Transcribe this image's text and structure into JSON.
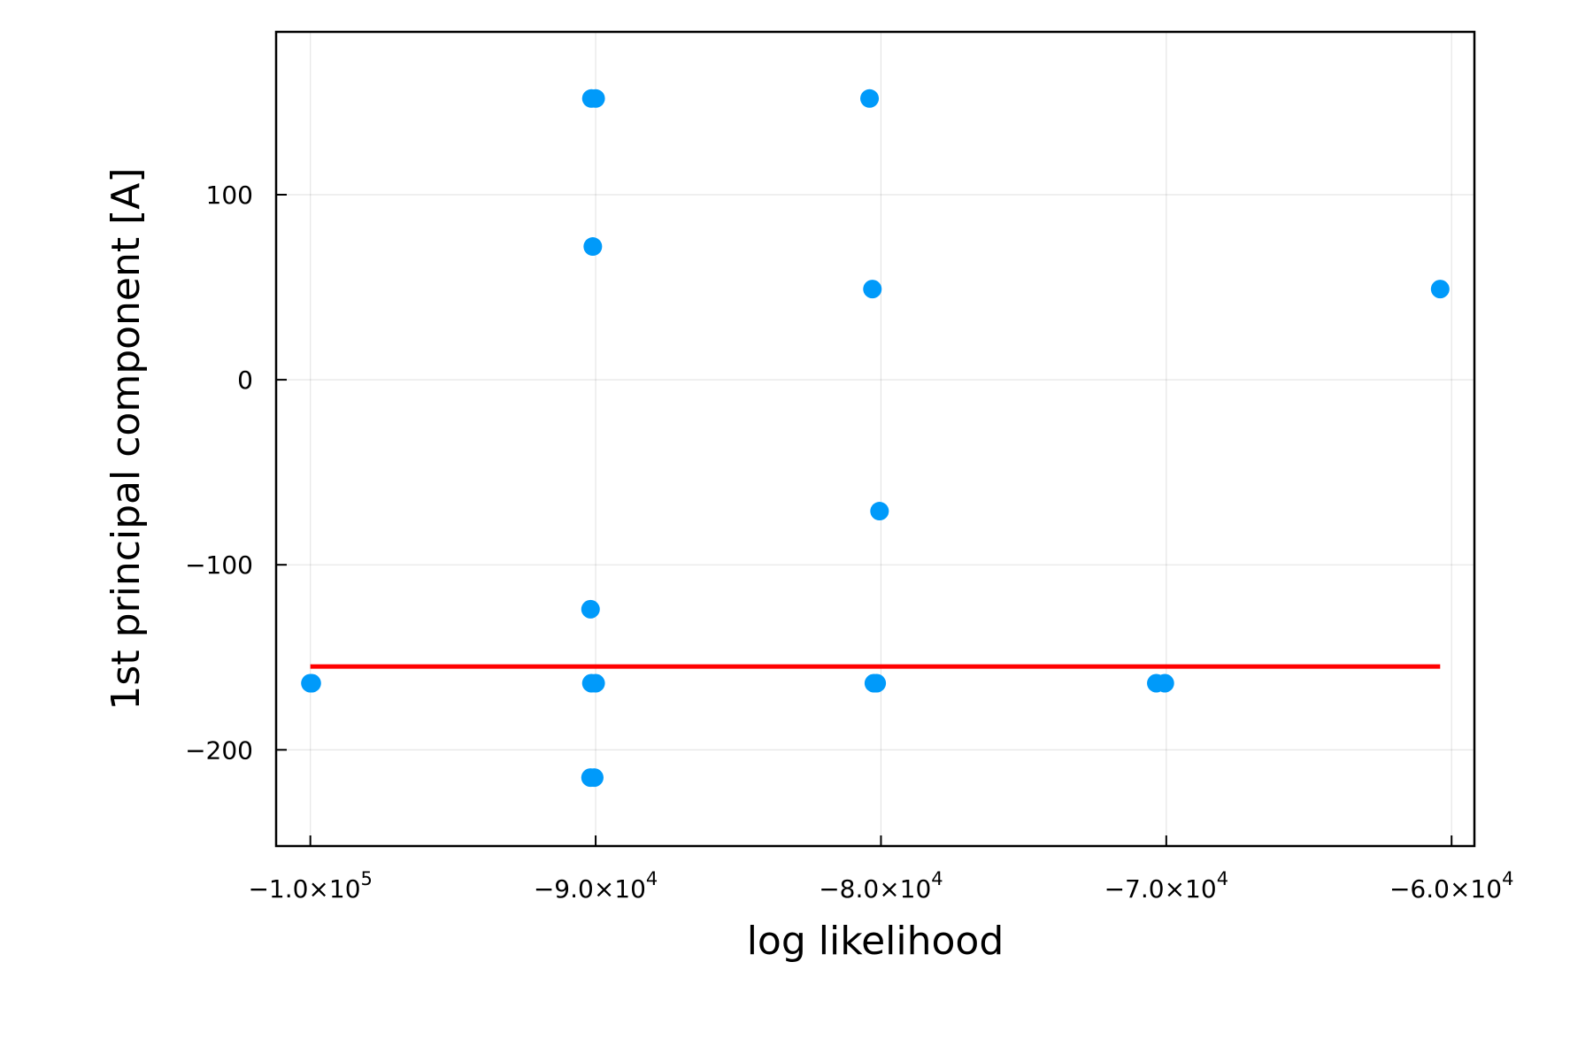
{
  "chart_data": {
    "type": "scatter",
    "title": "",
    "xlabel": "log likelihood",
    "ylabel": "1st principal component [A]",
    "xlim": [
      -101200,
      -59200
    ],
    "ylim": [
      -252,
      188
    ],
    "grid": true,
    "legend": "none",
    "x_ticks": [
      {
        "value": -100000,
        "mantissa": "−1.0×10",
        "exponent": "5"
      },
      {
        "value": -90000,
        "mantissa": "−9.0×10",
        "exponent": "4"
      },
      {
        "value": -80000,
        "mantissa": "−8.0×10",
        "exponent": "4"
      },
      {
        "value": -70000,
        "mantissa": "−7.0×10",
        "exponent": "4"
      },
      {
        "value": -60000,
        "mantissa": "−6.0×10",
        "exponent": "4"
      }
    ],
    "y_ticks": [
      {
        "value": 100,
        "label": "100"
      },
      {
        "value": 0,
        "label": "0"
      },
      {
        "value": -100,
        "label": "−100"
      },
      {
        "value": -200,
        "label": "−200"
      }
    ],
    "series": [
      {
        "type": "scatter",
        "color": "#009AFA",
        "points": [
          {
            "x": -100000,
            "y": -164
          },
          {
            "x": -99950,
            "y": -164
          },
          {
            "x": -90150,
            "y": 152
          },
          {
            "x": -90000,
            "y": 152
          },
          {
            "x": -90100,
            "y": 72
          },
          {
            "x": -90180,
            "y": -124
          },
          {
            "x": -90150,
            "y": -164
          },
          {
            "x": -90000,
            "y": -164
          },
          {
            "x": -90180,
            "y": -215
          },
          {
            "x": -90050,
            "y": -215
          },
          {
            "x": -80400,
            "y": 152
          },
          {
            "x": -80300,
            "y": 49
          },
          {
            "x": -80050,
            "y": -71
          },
          {
            "x": -80250,
            "y": -164
          },
          {
            "x": -80150,
            "y": -164
          },
          {
            "x": -70350,
            "y": -164
          },
          {
            "x": -70050,
            "y": -164
          },
          {
            "x": -60400,
            "y": 49
          }
        ]
      },
      {
        "type": "line",
        "color": "#FF0000",
        "points": [
          {
            "x": -100000,
            "y": -155
          },
          {
            "x": -60400,
            "y": -155
          }
        ]
      }
    ]
  }
}
